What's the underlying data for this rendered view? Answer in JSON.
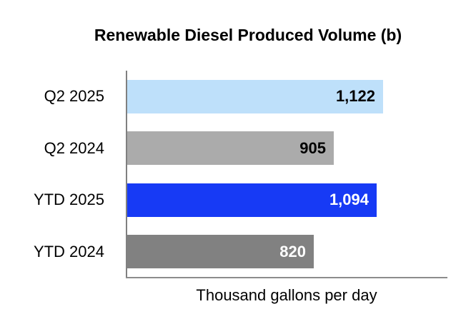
{
  "chart_data": {
    "type": "bar",
    "orientation": "horizontal",
    "title": "Renewable Diesel Produced Volume (b)",
    "xlabel": "Thousand gallons per day",
    "ylabel": "",
    "categories": [
      "Q2 2025",
      "Q2 2024",
      "YTD 2025",
      "YTD 2024"
    ],
    "values": [
      1122,
      905,
      1094,
      820
    ],
    "value_labels": [
      "1,122",
      "905",
      "1,094",
      "820"
    ],
    "xlim": [
      0,
      1400
    ],
    "grid": false,
    "legend": "none",
    "bar_colors": [
      "#BEE0FA",
      "#ABABAB",
      "#173AF5",
      "#818181"
    ],
    "value_label_colors": [
      "#000000",
      "#000000",
      "#FFFFFF",
      "#FFFFFF"
    ],
    "axis_color": "#808080"
  }
}
